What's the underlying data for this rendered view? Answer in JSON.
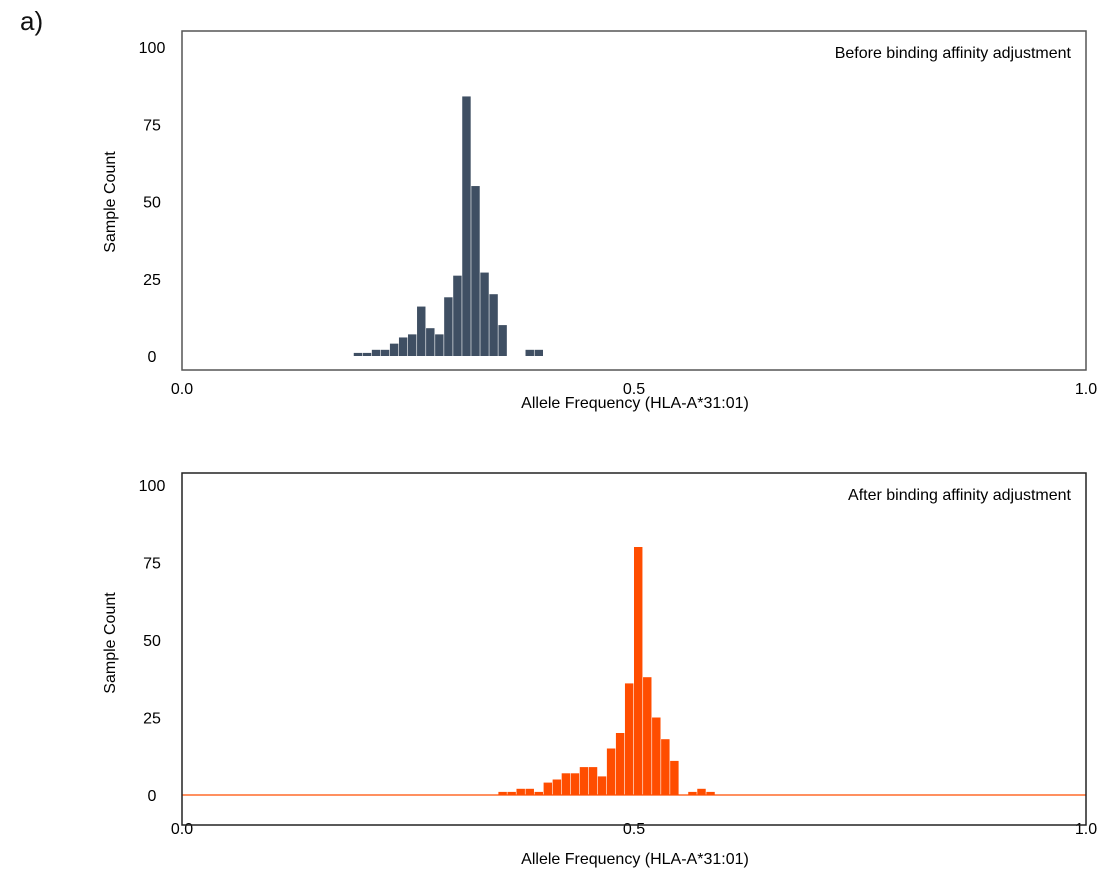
{
  "panel_label": "a)",
  "chart_data": [
    {
      "type": "bar",
      "title": "Before binding affinity adjustment",
      "xlabel": "Allele Frequency (HLA-A*31:01)",
      "ylabel": "Sample Count",
      "xlim": [
        0.0,
        1.0
      ],
      "ylim": [
        0,
        100
      ],
      "x_ticks": [
        "0.0",
        "0.5",
        "1.0"
      ],
      "y_ticks": [
        "0",
        "25",
        "50",
        "75",
        "100"
      ],
      "bin_width": 0.01,
      "color": "#3f4f63",
      "baseline_color": "",
      "bins": [
        0.195,
        0.205,
        0.215,
        0.225,
        0.235,
        0.245,
        0.255,
        0.265,
        0.275,
        0.285,
        0.295,
        0.305,
        0.315,
        0.325,
        0.335,
        0.345,
        0.355,
        0.365,
        0.375,
        0.385,
        0.395
      ],
      "values": [
        1,
        1,
        2,
        2,
        4,
        6,
        7,
        16,
        9,
        7,
        19,
        26,
        84,
        55,
        27,
        20,
        10,
        0,
        0,
        2,
        2
      ]
    },
    {
      "type": "bar",
      "title": "After binding affinity adjustment",
      "xlabel": "Allele Frequency (HLA-A*31:01)",
      "ylabel": "Sample Count",
      "xlim": [
        0.0,
        1.0
      ],
      "ylim": [
        0,
        100
      ],
      "x_ticks": [
        "0.0",
        "0.5",
        "1.0"
      ],
      "y_ticks": [
        "0",
        "25",
        "50",
        "75",
        "100"
      ],
      "bin_width": 0.01,
      "color": "#ff4d00",
      "baseline_color": "#ff4d00",
      "bins": [
        0.355,
        0.365,
        0.375,
        0.385,
        0.395,
        0.405,
        0.415,
        0.425,
        0.435,
        0.445,
        0.455,
        0.465,
        0.475,
        0.485,
        0.495,
        0.505,
        0.515,
        0.525,
        0.535,
        0.545,
        0.555,
        0.565,
        0.575,
        0.585
      ],
      "values": [
        1,
        1,
        2,
        2,
        1,
        4,
        5,
        7,
        7,
        9,
        9,
        6,
        15,
        20,
        36,
        80,
        38,
        25,
        18,
        11,
        0,
        1,
        2,
        1
      ]
    }
  ]
}
